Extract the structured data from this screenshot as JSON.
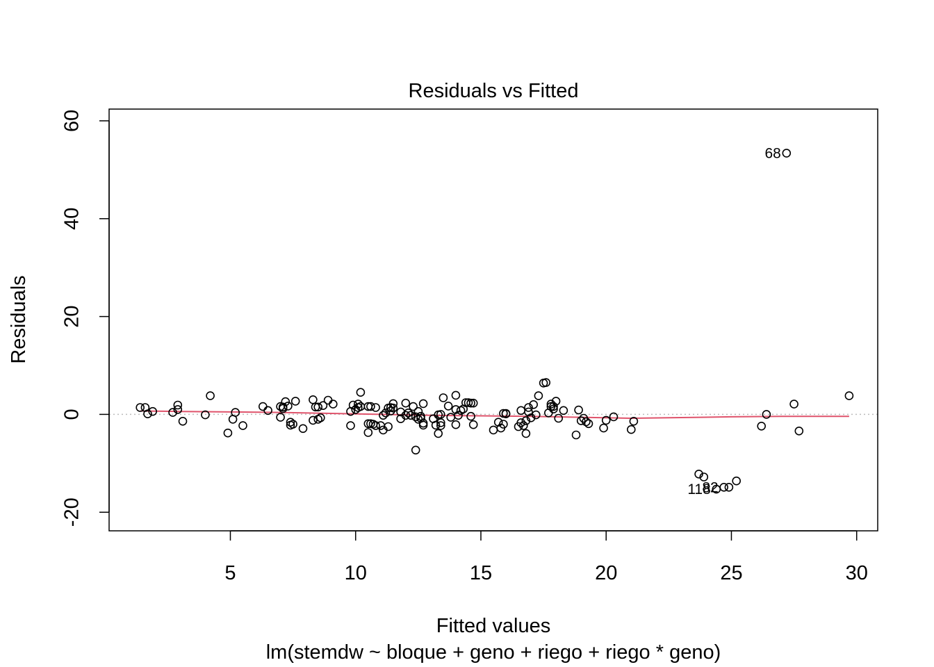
{
  "chart_data": {
    "type": "scatter",
    "title": "Residuals vs Fitted",
    "xlabel": "Fitted values",
    "subtitle": "lm(stemdw ~ bloque + geno + riego + riego * geno)",
    "ylabel": "Residuals",
    "xlim": [
      0.16,
      30.84
    ],
    "ylim": [
      -23.8,
      62.4
    ],
    "xticks": [
      5,
      10,
      15,
      20,
      25,
      30
    ],
    "xtick_labels": [
      "5",
      "10",
      "15",
      "20",
      "25",
      "30"
    ],
    "yticks": [
      -20,
      0,
      20,
      40,
      60
    ],
    "ytick_labels": [
      "-20",
      "0",
      "20",
      "40",
      "60"
    ],
    "reference_line": {
      "y": 0,
      "style": "dotted",
      "color": "#bbbbbb"
    },
    "point_color": "#000000",
    "smoother_color": "#df536b",
    "points": [
      [
        1.4,
        1.4
      ],
      [
        1.6,
        1.4
      ],
      [
        1.7,
        0.1
      ],
      [
        1.9,
        0.6
      ],
      [
        2.7,
        0.4
      ],
      [
        2.9,
        1.0
      ],
      [
        2.9,
        1.9
      ],
      [
        3.1,
        -1.4
      ],
      [
        4.0,
        -0.1
      ],
      [
        4.2,
        3.8
      ],
      [
        4.9,
        -3.8
      ],
      [
        5.1,
        -1.0
      ],
      [
        5.2,
        0.4
      ],
      [
        5.5,
        -2.3
      ],
      [
        6.3,
        1.6
      ],
      [
        6.5,
        0.8
      ],
      [
        7.0,
        -0.6
      ],
      [
        7.0,
        1.6
      ],
      [
        7.1,
        1.5
      ],
      [
        7.1,
        1.2
      ],
      [
        7.2,
        2.6
      ],
      [
        7.3,
        1.7
      ],
      [
        7.4,
        -1.6
      ],
      [
        7.4,
        -2.2
      ],
      [
        7.5,
        -2.0
      ],
      [
        7.6,
        2.7
      ],
      [
        7.9,
        -2.9
      ],
      [
        8.3,
        3.0
      ],
      [
        8.3,
        -1.2
      ],
      [
        8.4,
        1.5
      ],
      [
        8.5,
        1.5
      ],
      [
        8.5,
        -1.0
      ],
      [
        8.6,
        -0.7
      ],
      [
        8.7,
        1.8
      ],
      [
        8.9,
        2.9
      ],
      [
        9.1,
        2.1
      ],
      [
        9.8,
        0.6
      ],
      [
        9.8,
        -2.3
      ],
      [
        9.9,
        1.9
      ],
      [
        10.0,
        1.0
      ],
      [
        10.1,
        2.1
      ],
      [
        10.1,
        1.4
      ],
      [
        10.2,
        1.6
      ],
      [
        10.2,
        4.5
      ],
      [
        10.5,
        1.6
      ],
      [
        10.5,
        -1.9
      ],
      [
        10.5,
        -3.7
      ],
      [
        10.6,
        1.6
      ],
      [
        10.6,
        -1.9
      ],
      [
        10.7,
        -2.0
      ],
      [
        10.8,
        1.4
      ],
      [
        10.8,
        -2.3
      ],
      [
        11.0,
        -2.3
      ],
      [
        11.1,
        -0.2
      ],
      [
        11.1,
        -3.2
      ],
      [
        11.2,
        0.3
      ],
      [
        11.3,
        -2.5
      ],
      [
        11.3,
        1.3
      ],
      [
        11.4,
        1.4
      ],
      [
        11.4,
        0.7
      ],
      [
        11.5,
        1.3
      ],
      [
        11.5,
        2.2
      ],
      [
        11.8,
        -0.9
      ],
      [
        11.8,
        0.5
      ],
      [
        12.0,
        -0.2
      ],
      [
        12.0,
        2.3
      ],
      [
        12.1,
        0.3
      ],
      [
        12.2,
        -0.2
      ],
      [
        12.3,
        1.6
      ],
      [
        12.4,
        -0.5
      ],
      [
        12.4,
        -7.3
      ],
      [
        12.5,
        0.6
      ],
      [
        12.5,
        -1.0
      ],
      [
        12.6,
        -0.8
      ],
      [
        12.6,
        -0.4
      ],
      [
        12.7,
        -2.2
      ],
      [
        12.7,
        -1.8
      ],
      [
        12.7,
        2.2
      ],
      [
        13.1,
        -0.9
      ],
      [
        13.2,
        -2.2
      ],
      [
        13.3,
        -3.9
      ],
      [
        13.3,
        -0.1
      ],
      [
        13.4,
        -2.3
      ],
      [
        13.4,
        -1.7
      ],
      [
        13.4,
        0.0
      ],
      [
        13.5,
        3.4
      ],
      [
        13.7,
        1.7
      ],
      [
        13.8,
        -0.6
      ],
      [
        14.0,
        3.9
      ],
      [
        14.0,
        1.0
      ],
      [
        14.0,
        -2.1
      ],
      [
        14.1,
        -0.2
      ],
      [
        14.2,
        0.8
      ],
      [
        14.3,
        1.1
      ],
      [
        14.4,
        2.4
      ],
      [
        14.5,
        2.4
      ],
      [
        14.6,
        2.3
      ],
      [
        14.6,
        -0.4
      ],
      [
        14.7,
        2.3
      ],
      [
        14.7,
        -2.1
      ],
      [
        15.5,
        -3.2
      ],
      [
        15.7,
        -1.6
      ],
      [
        15.8,
        -2.8
      ],
      [
        15.9,
        0.2
      ],
      [
        15.9,
        -2.0
      ],
      [
        16.0,
        0.1
      ],
      [
        16.0,
        0.2
      ],
      [
        16.5,
        -2.5
      ],
      [
        16.6,
        0.8
      ],
      [
        16.6,
        -1.7
      ],
      [
        16.7,
        -2.3
      ],
      [
        16.8,
        -3.9
      ],
      [
        16.8,
        -1.3
      ],
      [
        16.9,
        1.4
      ],
      [
        16.9,
        0.5
      ],
      [
        17.0,
        -0.7
      ],
      [
        17.1,
        2.0
      ],
      [
        17.2,
        -0.1
      ],
      [
        17.3,
        3.8
      ],
      [
        17.5,
        6.4
      ],
      [
        17.6,
        6.5
      ],
      [
        17.7,
        0.3
      ],
      [
        17.8,
        1.6
      ],
      [
        17.8,
        2.1
      ],
      [
        17.9,
        1.6
      ],
      [
        17.9,
        1.1
      ],
      [
        18.0,
        2.7
      ],
      [
        18.1,
        -0.8
      ],
      [
        18.3,
        0.8
      ],
      [
        18.8,
        -4.2
      ],
      [
        18.9,
        0.9
      ],
      [
        19.0,
        -1.3
      ],
      [
        19.1,
        -0.8
      ],
      [
        19.2,
        -1.5
      ],
      [
        19.3,
        -1.9
      ],
      [
        19.9,
        -2.8
      ],
      [
        20.0,
        -1.2
      ],
      [
        20.3,
        -0.5
      ],
      [
        21.0,
        -3.1
      ],
      [
        21.1,
        -1.4
      ],
      [
        23.7,
        -12.2
      ],
      [
        23.9,
        -12.8
      ],
      [
        24.4,
        -15.3
      ],
      [
        24.7,
        -14.9
      ],
      [
        24.9,
        -14.9
      ],
      [
        25.2,
        -13.6
      ],
      [
        26.2,
        -2.4
      ],
      [
        26.4,
        0.0
      ],
      [
        27.2,
        53.4
      ],
      [
        27.5,
        2.1
      ],
      [
        27.7,
        -3.4
      ],
      [
        29.7,
        3.8
      ]
    ],
    "annotations": [
      {
        "label": "68",
        "x": 27.2,
        "y": 53.4,
        "pos": "left"
      },
      {
        "label": "82",
        "x": 24.7,
        "y": -14.9,
        "pos": "left"
      },
      {
        "label": "118",
        "x": 24.4,
        "y": -15.3,
        "pos": "left"
      }
    ],
    "smoother": [
      [
        1.4,
        0.7
      ],
      [
        3.0,
        0.6
      ],
      [
        5.0,
        0.5
      ],
      [
        7.0,
        0.4
      ],
      [
        9.0,
        0.2
      ],
      [
        11.0,
        0.0
      ],
      [
        13.0,
        -0.2
      ],
      [
        15.0,
        -0.3
      ],
      [
        17.0,
        -0.4
      ],
      [
        19.0,
        -0.6
      ],
      [
        21.0,
        -0.8
      ],
      [
        22.5,
        -0.7
      ],
      [
        25.0,
        -0.5
      ],
      [
        27.0,
        -0.4
      ],
      [
        29.7,
        -0.4
      ]
    ]
  }
}
